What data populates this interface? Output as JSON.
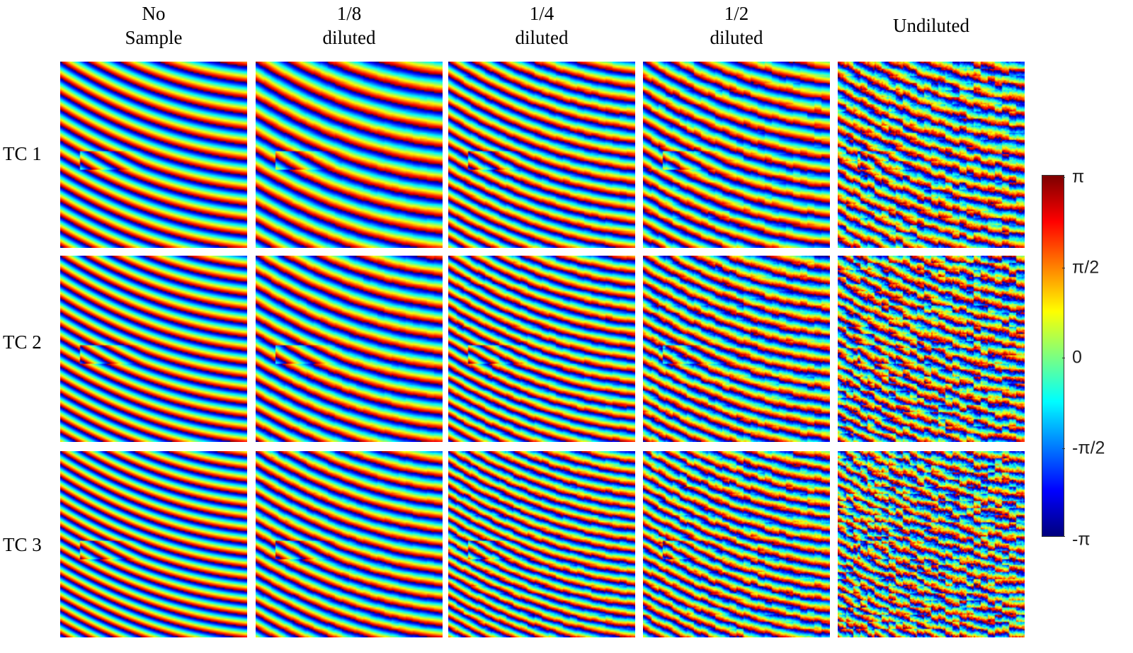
{
  "columns": [
    {
      "line1": "No",
      "line2": "Sample"
    },
    {
      "line1": "1/8",
      "line2": "diluted"
    },
    {
      "line1": "1/4",
      "line2": "diluted"
    },
    {
      "line1": "1/2",
      "line2": "diluted"
    },
    {
      "line1": "",
      "line2": "Undiluted"
    }
  ],
  "rows": [
    "TC 1",
    "TC 2",
    "TC 3"
  ],
  "colorbar": {
    "colormap": "jet",
    "ticks": [
      "π",
      "π/2",
      "0",
      "-π/2",
      "-π"
    ],
    "range": [
      "-π",
      "π"
    ]
  }
}
